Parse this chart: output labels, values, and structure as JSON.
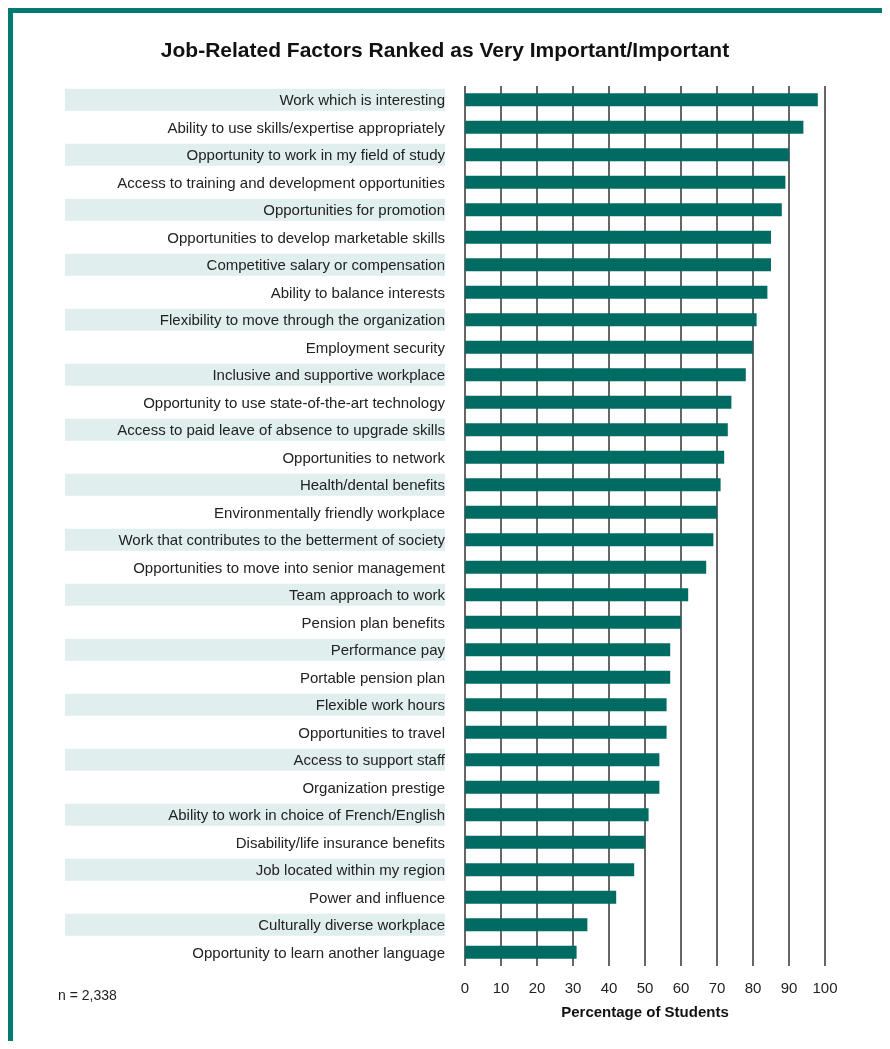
{
  "chart_data": {
    "type": "bar",
    "orientation": "horizontal",
    "title": "Job-Related Factors Ranked as Very Important/Important",
    "xlabel": "Percentage of Students",
    "categories": [
      "Work which is interesting",
      "Ability to use skills/expertise appropriately",
      "Opportunity to work in my field of study",
      "Access to training and development opportunities",
      "Opportunities for promotion",
      "Opportunities to develop marketable skills",
      "Competitive salary or compensation",
      "Ability to balance interests",
      "Flexibility to move through the organization",
      "Employment security",
      "Inclusive and supportive workplace",
      "Opportunity to use state-of-the-art technology",
      "Access to paid leave of absence to upgrade skills",
      "Opportunities to network",
      "Health/dental benefits",
      "Environmentally friendly workplace",
      "Work that contributes to the betterment of society",
      "Opportunities to move into senior management",
      "Team approach to work",
      "Pension plan benefits",
      "Performance pay",
      "Portable pension plan",
      "Flexible work hours",
      "Opportunities to travel",
      "Access to support staff",
      "Organization prestige",
      "Ability to work in choice of French/English",
      "Disability/life insurance benefits",
      "Job located within my region",
      "Power and influence",
      "Culturally diverse workplace",
      "Opportunity to learn another language"
    ],
    "values": [
      98,
      94,
      90,
      89,
      88,
      85,
      85,
      84,
      81,
      80,
      78,
      74,
      73,
      72,
      71,
      70,
      69,
      67,
      62,
      60,
      57,
      57,
      56,
      56,
      54,
      54,
      51,
      50,
      47,
      42,
      34,
      31
    ],
    "color": "#006b63",
    "xlim": [
      0,
      100
    ],
    "xticks": [
      0,
      10,
      20,
      30,
      40,
      50,
      60,
      70,
      80,
      90,
      100
    ],
    "grid": "x",
    "annotations": [
      "n = 2,338"
    ]
  }
}
